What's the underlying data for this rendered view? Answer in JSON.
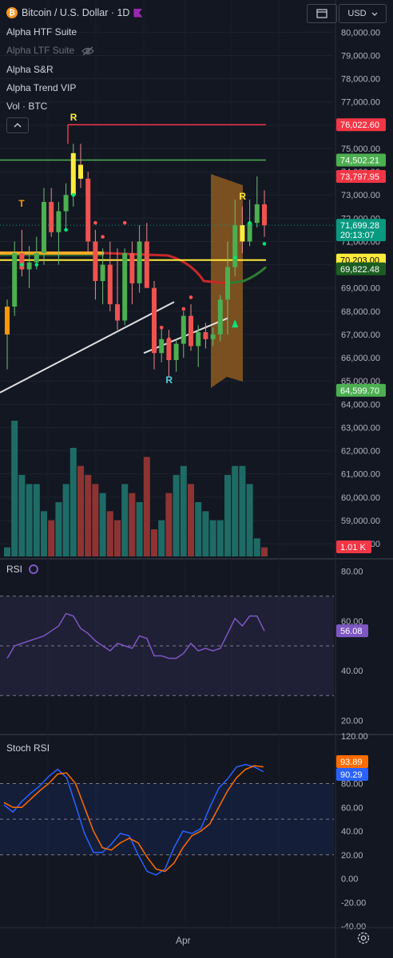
{
  "header": {
    "symbol_title": "Bitcoin / U.S. Dollar · 1D",
    "currency": "USD"
  },
  "indicators": [
    {
      "label": "Alpha HTF Suite",
      "hidden": false
    },
    {
      "label": "Alpha LTF Suite",
      "hidden": true
    },
    {
      "label": "Alpha S&R",
      "hidden": false
    },
    {
      "label": "Alpha Trend VIP",
      "hidden": false
    },
    {
      "label": "Vol · BTC",
      "hidden": false
    }
  ],
  "panes": {
    "rsi_label": "RSI",
    "stoch_label": "Stoch RSI"
  },
  "colors": {
    "background": "#131722",
    "up": "#26a69a",
    "down": "#ef5350",
    "resistance": "#ef5350",
    "support": "#4caf50",
    "key_level": "#ffeb3b",
    "rsi_line": "#7e57c2",
    "stoch_k": "#2962ff",
    "stoch_d": "#ff6d00"
  },
  "chart_data": [
    {
      "type": "candlestick",
      "title": "Bitcoin / U.S. Dollar · 1D",
      "y_axis_ticks": [
        80000,
        79000,
        78000,
        77000,
        76000,
        75000,
        74000,
        73000,
        72000,
        71000,
        70000,
        69000,
        68000,
        67000,
        66000,
        65000,
        64000,
        63000,
        62000,
        61000,
        60000,
        59000,
        58000
      ],
      "ylim": [
        57900,
        80150
      ],
      "x_tick_labels": [
        "Apr"
      ],
      "candles": [
        {
          "o": 67000,
          "h": 68500,
          "l": 65500,
          "c": 68200
        },
        {
          "o": 68200,
          "h": 71000,
          "l": 67800,
          "c": 70500
        },
        {
          "o": 70500,
          "h": 71500,
          "l": 69500,
          "c": 69800
        },
        {
          "o": 69800,
          "h": 70800,
          "l": 69000,
          "c": 70100
        },
        {
          "o": 70100,
          "h": 71200,
          "l": 69800,
          "c": 70500
        },
        {
          "o": 70500,
          "h": 73300,
          "l": 70000,
          "c": 72700
        },
        {
          "o": 72700,
          "h": 73300,
          "l": 71200,
          "c": 71400
        },
        {
          "o": 71400,
          "h": 72700,
          "l": 70000,
          "c": 72300
        },
        {
          "o": 72300,
          "h": 73500,
          "l": 71500,
          "c": 73000
        },
        {
          "o": 73000,
          "h": 75200,
          "l": 72500,
          "c": 74800
        },
        {
          "o": 74300,
          "h": 75200,
          "l": 73300,
          "c": 73700
        },
        {
          "o": 73700,
          "h": 74000,
          "l": 70500,
          "c": 71000
        },
        {
          "o": 71000,
          "h": 71500,
          "l": 68500,
          "c": 69300
        },
        {
          "o": 69300,
          "h": 70700,
          "l": 68300,
          "c": 70000
        },
        {
          "o": 70000,
          "h": 71000,
          "l": 68000,
          "c": 68300
        },
        {
          "o": 68300,
          "h": 70700,
          "l": 67200,
          "c": 67600
        },
        {
          "o": 67600,
          "h": 70700,
          "l": 67400,
          "c": 70500
        },
        {
          "o": 70500,
          "h": 71000,
          "l": 68300,
          "c": 69200
        },
        {
          "o": 69200,
          "h": 71700,
          "l": 68800,
          "c": 71000
        },
        {
          "o": 71000,
          "h": 71800,
          "l": 69000,
          "c": 69000
        },
        {
          "o": 69000,
          "h": 69300,
          "l": 65500,
          "c": 66200
        },
        {
          "o": 66200,
          "h": 67300,
          "l": 65800,
          "c": 66800
        },
        {
          "o": 66800,
          "h": 67200,
          "l": 65200,
          "c": 65900
        },
        {
          "o": 65900,
          "h": 66800,
          "l": 65400,
          "c": 66600
        },
        {
          "o": 66600,
          "h": 68000,
          "l": 66000,
          "c": 67800
        },
        {
          "o": 67800,
          "h": 68300,
          "l": 66300,
          "c": 66500
        },
        {
          "o": 66500,
          "h": 67400,
          "l": 65600,
          "c": 67100
        },
        {
          "o": 67100,
          "h": 67500,
          "l": 66400,
          "c": 66800
        },
        {
          "o": 66800,
          "h": 67300,
          "l": 66500,
          "c": 67000
        },
        {
          "o": 67000,
          "h": 68700,
          "l": 66700,
          "c": 68500
        },
        {
          "o": 68500,
          "h": 71000,
          "l": 67000,
          "c": 69900
        },
        {
          "o": 69900,
          "h": 72800,
          "l": 69500,
          "c": 71700
        },
        {
          "o": 71700,
          "h": 72500,
          "l": 70500,
          "c": 71000
        },
        {
          "o": 71000,
          "h": 72800,
          "l": 70800,
          "c": 71800
        },
        {
          "o": 71800,
          "h": 73800,
          "l": 71600,
          "c": 72600
        },
        {
          "o": 72600,
          "h": 73200,
          "l": 71200,
          "c": 71699
        }
      ],
      "horizontal_levels": [
        {
          "value": 76022.6,
          "label": "76,022.60",
          "role": "resistance"
        },
        {
          "value": 74502.21,
          "label": "74,502.21",
          "role": "support"
        },
        {
          "value": 70203.0,
          "label": "70,203.00",
          "role": "key"
        }
      ],
      "price_labels": [
        {
          "value": 76022.6,
          "text": "76,022.60",
          "color": "#f23645",
          "text_color": "#ffffff"
        },
        {
          "value": 74502.21,
          "text": "74,502.21",
          "color": "#4caf50",
          "text_color": "#ffffff"
        },
        {
          "value": 73797.95,
          "text": "73,797.95",
          "color": "#f23645",
          "text_color": "#ffffff"
        },
        {
          "value": 71699.28,
          "text": "71,699.28",
          "sub": "20:13:07",
          "color": "#089981",
          "text_color": "#ffffff"
        },
        {
          "value": 70203.0,
          "text": "70,203.00",
          "color": "#ffeb3b",
          "text_color": "#000000"
        },
        {
          "value": 69822.48,
          "text": "69,822.48",
          "color": "#1b5e20",
          "text_color": "#ffffff"
        },
        {
          "value": 64599.7,
          "text": "64,599.70",
          "color": "#4caf50",
          "text_color": "#ffffff"
        }
      ],
      "annotations": [
        "T",
        "R",
        "R",
        "R"
      ]
    },
    {
      "type": "bar",
      "title": "Vol · BTC",
      "last_value_label": "1.01 K",
      "values": [
        1,
        15,
        9,
        8,
        8,
        5,
        4,
        6,
        8,
        12,
        10,
        9,
        8,
        7,
        5,
        4,
        8,
        7,
        6,
        11,
        3,
        4,
        7,
        9,
        10,
        8,
        6,
        5,
        4,
        4,
        9,
        10,
        10,
        8,
        2,
        1
      ],
      "directions": [
        "up",
        "up",
        "up",
        "up",
        "up",
        "up",
        "down",
        "up",
        "up",
        "up",
        "down",
        "down",
        "down",
        "up",
        "down",
        "down",
        "up",
        "down",
        "up",
        "down",
        "down",
        "up",
        "down",
        "up",
        "up",
        "down",
        "up",
        "up",
        "up",
        "up",
        "up",
        "up",
        "up",
        "up",
        "up",
        "down"
      ]
    },
    {
      "type": "line",
      "title": "RSI",
      "y_axis_ticks": [
        80,
        60,
        40,
        20
      ],
      "ylim": [
        15,
        85
      ],
      "bands": [
        30,
        50,
        70
      ],
      "last_value_label": "56.08",
      "values": [
        45,
        50,
        51,
        52,
        53,
        54,
        56,
        58,
        63,
        62,
        57,
        55,
        52,
        50,
        48,
        51,
        50,
        49,
        54,
        53,
        46,
        46,
        45,
        45,
        47,
        51,
        48,
        49,
        48,
        49,
        55,
        61,
        58,
        62,
        62,
        56
      ]
    },
    {
      "type": "line",
      "title": "Stoch RSI",
      "y_axis_ticks": [
        120,
        100,
        80,
        60,
        40,
        20,
        0,
        -20,
        -40
      ],
      "ylim": [
        -40,
        120
      ],
      "bands": [
        20,
        50,
        80
      ],
      "series": [
        {
          "name": "K",
          "last_value_label": "90.29",
          "values": [
            62,
            56,
            65,
            72,
            78,
            86,
            92,
            85,
            62,
            38,
            22,
            22,
            29,
            38,
            36,
            20,
            6,
            3,
            8,
            26,
            40,
            38,
            42,
            60,
            76,
            84,
            94,
            96,
            94,
            90
          ]
        },
        {
          "name": "D",
          "last_value_label": "93.89",
          "values": [
            64,
            60,
            60,
            67,
            74,
            80,
            88,
            89,
            80,
            60,
            40,
            26,
            24,
            30,
            34,
            30,
            18,
            8,
            6,
            13,
            26,
            36,
            40,
            46,
            60,
            74,
            85,
            92,
            95,
            94
          ]
        }
      ]
    }
  ]
}
